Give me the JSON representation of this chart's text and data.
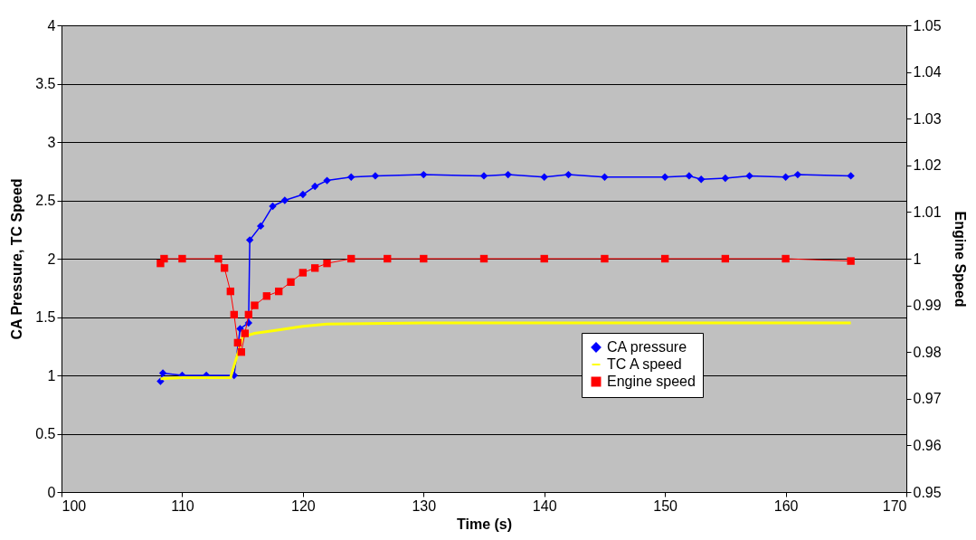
{
  "chart_data": {
    "type": "line",
    "xlabel": "Time (s)",
    "ylabel": "CA Pressure, TC Speed",
    "y2label": "Engine Speed",
    "xlim": [
      100,
      170
    ],
    "xticks": [
      100,
      110,
      120,
      130,
      140,
      150,
      160,
      170
    ],
    "ylim": [
      0,
      4
    ],
    "yticks": [
      0,
      0.5,
      1,
      1.5,
      2,
      2.5,
      3,
      3.5,
      4
    ],
    "y2lim": [
      0.95,
      1.05
    ],
    "y2ticks": [
      0.95,
      0.96,
      0.97,
      0.98,
      0.99,
      1,
      1.01,
      1.02,
      1.03,
      1.04,
      1.05
    ],
    "grid": "y",
    "legend": "right",
    "series": [
      {
        "name": "CA pressure",
        "color": "#0000ff",
        "marker": "diamond",
        "x": [
          108.2,
          108.4,
          110,
          112,
          114.3,
          114.8,
          115.5,
          115.6,
          116.5,
          117.5,
          118.5,
          120,
          121,
          122,
          124,
          126,
          130,
          135,
          137,
          140,
          142,
          145,
          150,
          152,
          153,
          155,
          157,
          160,
          161,
          165.4
        ],
        "values": [
          0.95,
          1.02,
          1.0,
          1.0,
          1.0,
          1.4,
          1.45,
          2.16,
          2.28,
          2.45,
          2.5,
          2.55,
          2.62,
          2.67,
          2.7,
          2.71,
          2.72,
          2.71,
          2.72,
          2.7,
          2.72,
          2.7,
          2.7,
          2.71,
          2.68,
          2.69,
          2.71,
          2.7,
          2.72,
          2.71
        ]
      },
      {
        "name": "TC A speed",
        "color": "#ffff00",
        "marker": "none",
        "x": [
          108.2,
          110,
          114,
          114.5,
          115,
          116,
          118,
          120,
          122,
          130,
          140,
          150,
          165.4
        ],
        "values": [
          0.97,
          0.98,
          0.98,
          1.15,
          1.33,
          1.36,
          1.39,
          1.42,
          1.44,
          1.45,
          1.45,
          1.45,
          1.45
        ]
      },
      {
        "name": "Engine speed",
        "color": "#ff0000",
        "marker": "square",
        "axis": "y2",
        "x": [
          108.2,
          108.5,
          110,
          113,
          113.5,
          114,
          114.3,
          114.6,
          114.9,
          115.2,
          115.5,
          116,
          117,
          118,
          119,
          120,
          121,
          122,
          124,
          127,
          130,
          135,
          140,
          145,
          150,
          155,
          160,
          165.4
        ],
        "values": [
          0.999,
          1.0,
          1.0,
          1.0,
          0.998,
          0.993,
          0.988,
          0.982,
          0.98,
          0.984,
          0.988,
          0.99,
          0.992,
          0.993,
          0.995,
          0.997,
          0.998,
          0.999,
          1.0,
          1.0,
          1.0,
          1.0,
          1.0,
          1.0,
          1.0,
          1.0,
          1.0,
          0.9995
        ]
      }
    ]
  }
}
